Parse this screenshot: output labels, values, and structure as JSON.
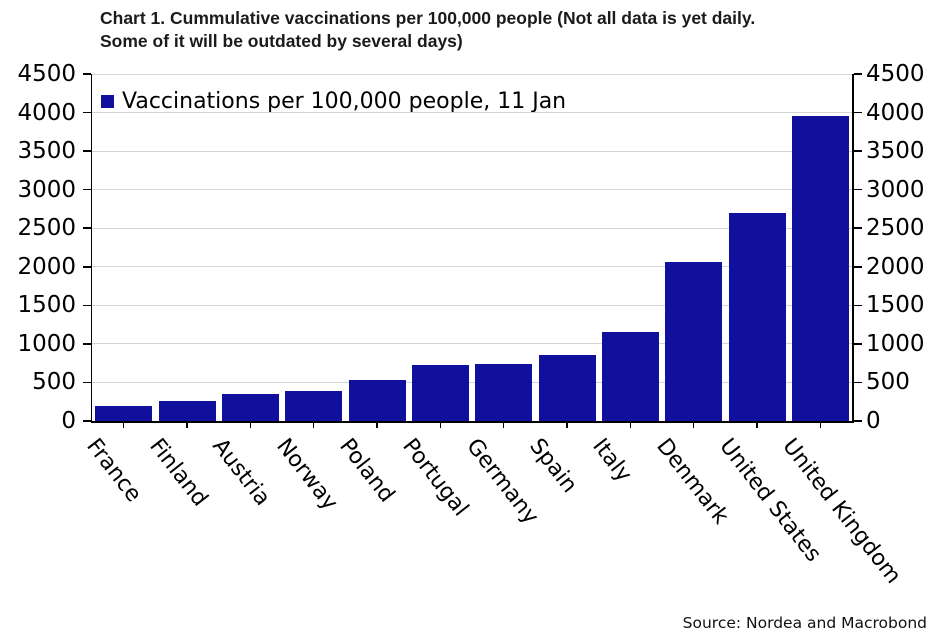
{
  "page": {
    "title_line1": "Chart 1. Cummulative vaccinations per 100,000 people (Not all data is yet daily.",
    "title_line2": "Some of it will be outdated by several days)",
    "source": "Source: Nordea and Macrobond"
  },
  "colors": {
    "bar": "#10109c",
    "grid": "#d4d4d4",
    "axis": "#000000"
  },
  "chart_data": {
    "type": "bar",
    "title": "Chart 1. Cummulative vaccinations per 100,000 people (Not all data is yet daily. Some of it will be outdated by several days)",
    "legend": [
      "Vaccinations per 100,000 people, 11 Jan"
    ],
    "legend_position": "upper-left",
    "categories": [
      "France",
      "Finland",
      "Austria",
      "Norway",
      "Poland",
      "Portugal",
      "Germany",
      "Spain",
      "Italy",
      "Denmark",
      "United States",
      "United Kingdom"
    ],
    "values": [
      200,
      255,
      345,
      390,
      530,
      720,
      735,
      860,
      1160,
      2060,
      2700,
      3950
    ],
    "xlabel": "",
    "ylabel": "",
    "ylim": [
      0,
      4500
    ],
    "yticks": [
      0,
      500,
      1000,
      1500,
      2000,
      2500,
      3000,
      3500,
      4000,
      4500
    ],
    "grid": true,
    "dual_y_axis": true,
    "bar_color": "#10109c",
    "source": "Source: Nordea and Macrobond"
  }
}
